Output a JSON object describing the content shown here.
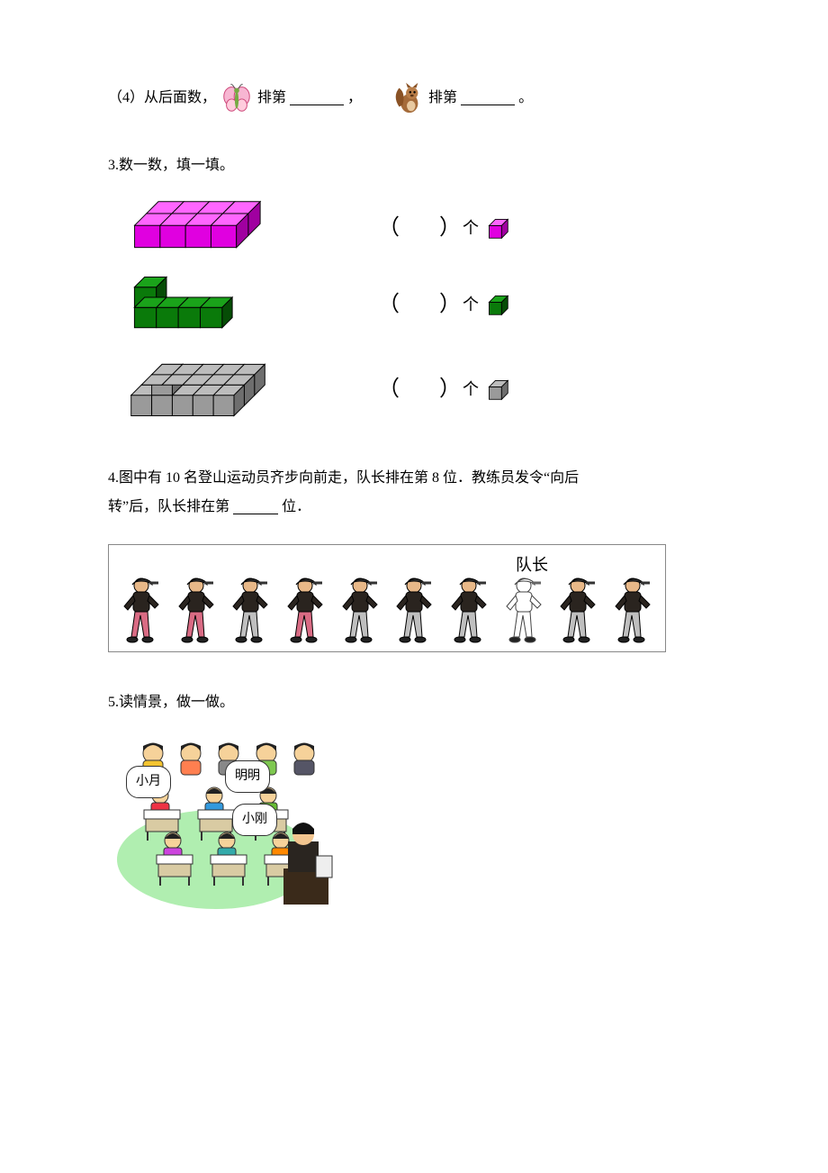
{
  "q2": {
    "prefix": "（4）从后面数，",
    "mid1": "排第",
    "comma": "，",
    "mid2": "排第",
    "end": "。"
  },
  "q3": {
    "title": "3.数一数，填一填。",
    "unit": "个",
    "rows": [
      {
        "color": "#e000e0",
        "shade": "#a000a0",
        "top": "#ff66ff"
      },
      {
        "color": "#0a7a0a",
        "shade": "#064d06",
        "top": "#1aa31a"
      },
      {
        "color": "#9a9a9a",
        "shade": "#6e6e6e",
        "top": "#bcbcbc"
      }
    ]
  },
  "q4": {
    "text_a": "4.图中有 10 名登山运动员齐步向前走，队长排在第 8 位．教练员发令“向后",
    "text_b": "转”后，队长排在第",
    "text_c": "位．",
    "captain_label": "队长",
    "hikers": [
      {
        "pants": "#d96b84"
      },
      {
        "pants": "#d96b84"
      },
      {
        "pants": "#bfbfbf"
      },
      {
        "pants": "#d96b84"
      },
      {
        "pants": "#bfbfbf"
      },
      {
        "pants": "#bfbfbf"
      },
      {
        "pants": "#bfbfbf"
      },
      {
        "pants": "#ffffff",
        "outline": true
      },
      {
        "pants": "#bfbfbf"
      },
      {
        "pants": "#bfbfbf"
      }
    ]
  },
  "q5": {
    "title": "5.读情景，做一做。",
    "labels": {
      "xiaoyue": "小月",
      "mingming": "明明",
      "xiaogang": "小刚"
    }
  }
}
